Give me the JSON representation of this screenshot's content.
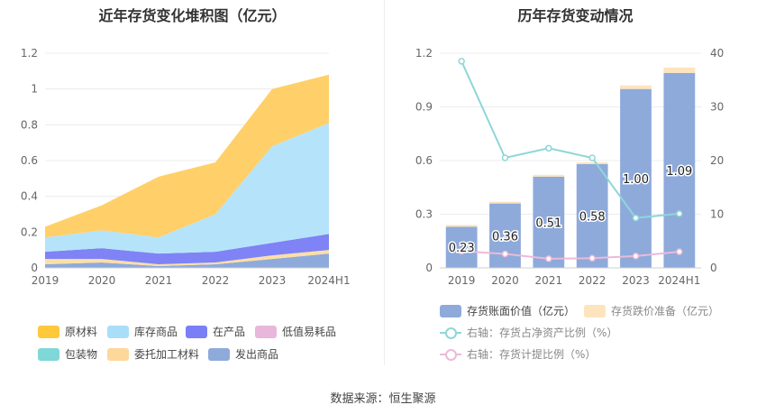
{
  "chart_data": [
    {
      "type": "area",
      "title": "近年存货变化堆积图（亿元）",
      "categories": [
        "2019",
        "2020",
        "2021",
        "2022",
        "2023",
        "2024H1"
      ],
      "stacked": true,
      "ylim": [
        0,
        1.2
      ],
      "yticks": [
        "0",
        "0.2",
        "0.4",
        "0.6",
        "0.8",
        "1",
        "1.2"
      ],
      "series": [
        {
          "name": "发出商品",
          "color": "#8eaadb",
          "values": [
            0.02,
            0.03,
            0.01,
            0.02,
            0.05,
            0.08
          ]
        },
        {
          "name": "委托加工材料",
          "color": "#fddfa5",
          "values": [
            0.03,
            0.02,
            0.01,
            0.01,
            0.02,
            0.02
          ]
        },
        {
          "name": "包装物",
          "color": "#7fd7d8",
          "values": [
            0.0,
            0.0,
            0.0,
            0.0,
            0.0,
            0.0
          ]
        },
        {
          "name": "低值易耗品",
          "color": "#e8b7da",
          "values": [
            0.0,
            0.0,
            0.0,
            0.0,
            0.0,
            0.0
          ]
        },
        {
          "name": "在产品",
          "color": "#7f83f5",
          "values": [
            0.04,
            0.06,
            0.06,
            0.06,
            0.07,
            0.09
          ]
        },
        {
          "name": "库存商品",
          "color": "#b5e4fa",
          "values": [
            0.08,
            0.1,
            0.09,
            0.21,
            0.54,
            0.62
          ]
        },
        {
          "name": "原材料",
          "color": "#ffd06a",
          "values": [
            0.06,
            0.14,
            0.34,
            0.29,
            0.32,
            0.27
          ]
        }
      ],
      "legend": [
        "原材料",
        "库存商品",
        "在产品",
        "低值易耗品",
        "包装物",
        "委托加工材料",
        "发出商品"
      ]
    },
    {
      "type": "bar",
      "title": "历年存货变动情况",
      "categories": [
        "2019",
        "2020",
        "2021",
        "2022",
        "2023",
        "2024H1"
      ],
      "ylim": [
        0,
        1.2
      ],
      "yticks": [
        "0",
        "0.3",
        "0.6",
        "0.9",
        "1.2"
      ],
      "y2lim": [
        0,
        40
      ],
      "y2ticks": [
        "0",
        "10",
        "20",
        "30",
        "40"
      ],
      "series": [
        {
          "name": "存货账面价值（亿元）",
          "color": "#8eaadb",
          "values": [
            0.23,
            0.36,
            0.51,
            0.58,
            1.0,
            1.09
          ],
          "labels": [
            "0.23",
            "0.36",
            "0.51",
            "0.58",
            "1.00",
            "1.09"
          ]
        },
        {
          "name": "存货跌价准备（亿元）",
          "color": "#fde4bd",
          "values": [
            0.01,
            0.01,
            0.01,
            0.01,
            0.02,
            0.03
          ]
        },
        {
          "name": "右轴：存货占净资产比例（%）",
          "color": "#8fd6d8",
          "axis": "right",
          "values": [
            38.5,
            20.5,
            22.3,
            20.5,
            9.3,
            10.1
          ]
        },
        {
          "name": "右轴：存货计提比例（%）",
          "color": "#ebbad9",
          "axis": "right",
          "values": [
            3.1,
            2.6,
            1.7,
            1.8,
            2.2,
            3.0
          ]
        }
      ]
    }
  ],
  "source": "数据来源：恒生聚源"
}
